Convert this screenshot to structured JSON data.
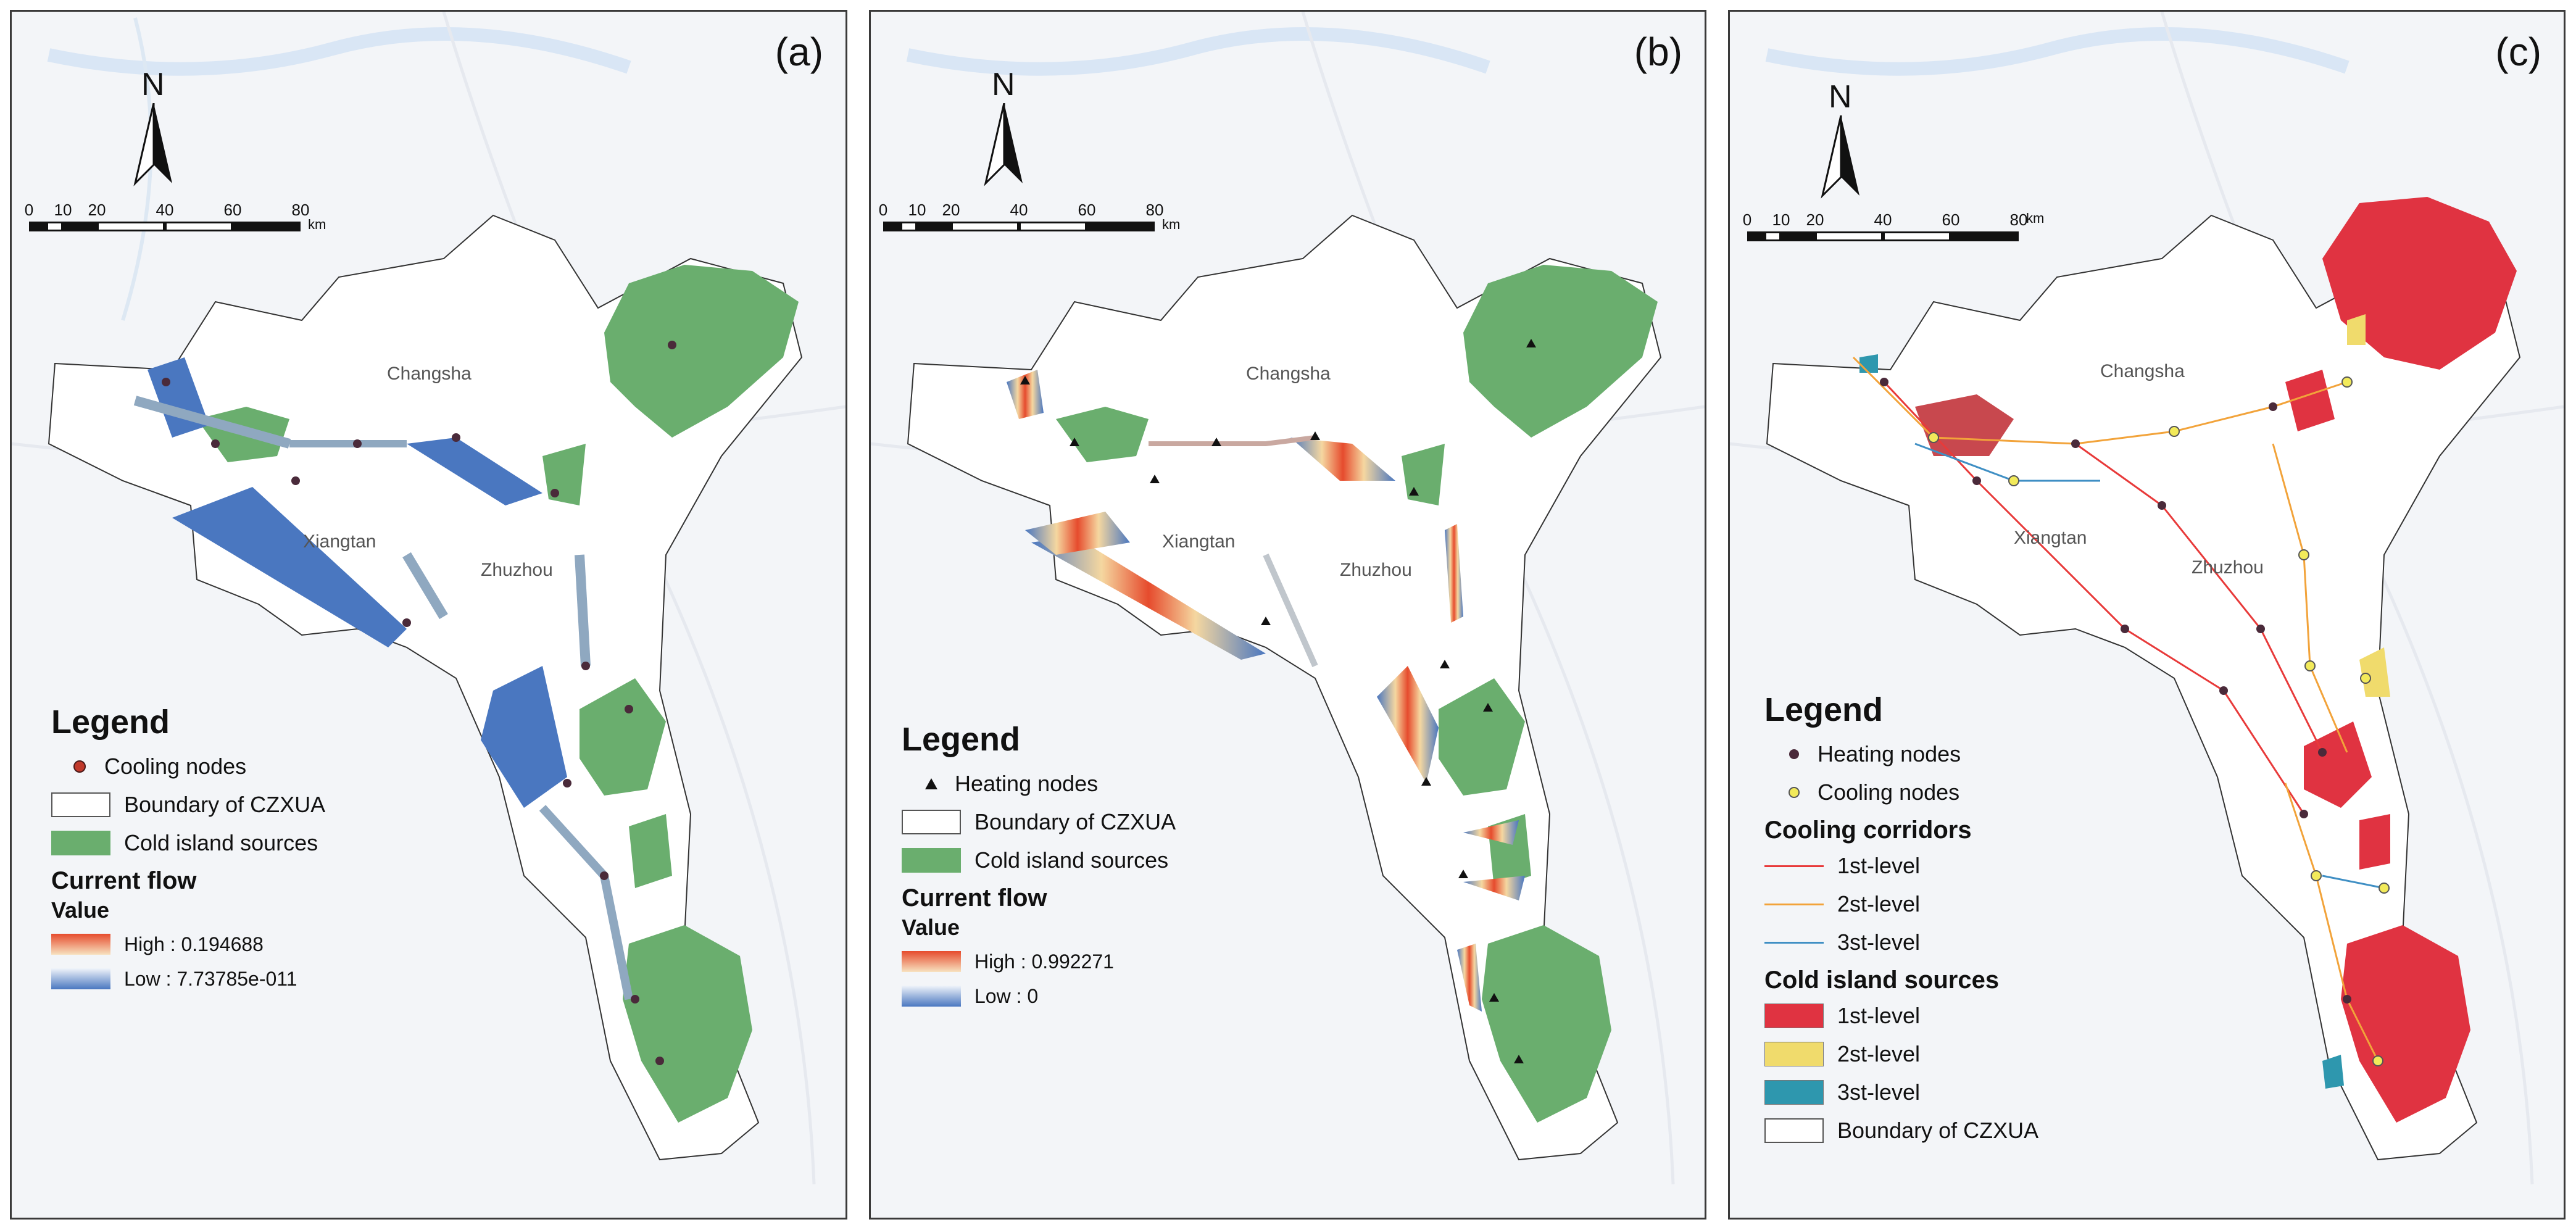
{
  "panels": {
    "a": {
      "label": "(a)",
      "legend": {
        "title": "Legend",
        "items": [
          "Cooling nodes",
          "Boundary of CZXUA",
          "Cold island sources"
        ],
        "ramp_title": "Current flow",
        "ramp_subtitle": "Value",
        "high": "High : 0.194688",
        "low": "Low : 7.73785e-011"
      }
    },
    "b": {
      "label": "(b)",
      "legend": {
        "title": "Legend",
        "items": [
          "Heating nodes",
          "Boundary of CZXUA",
          "Cold island sources"
        ],
        "ramp_title": "Current flow",
        "ramp_subtitle": "Value",
        "high": "High : 0.992271",
        "low": "Low : 0"
      }
    },
    "c": {
      "label": "(c)",
      "legend": {
        "title": "Legend",
        "node_items": [
          "Heating nodes",
          "Cooling nodes"
        ],
        "corridors_title": "Cooling corridors",
        "corridor_items": [
          "1st-level",
          "2st-level",
          "3st-level"
        ],
        "sources_title": "Cold island sources",
        "source_items": [
          "1st-level",
          "2st-level",
          "3st-level"
        ],
        "boundary": "Boundary of CZXUA"
      }
    }
  },
  "map": {
    "north": "N",
    "scale_ticks": [
      "0",
      "10",
      "20",
      "40",
      "60",
      "80"
    ],
    "scale_unit": "km",
    "cities": [
      "Changsha",
      "Xiangtan",
      "Zhuzhou"
    ]
  },
  "colors": {
    "cold_island_green": "#6aae6e",
    "flow_low_blue": "#4a77c0",
    "flow_high_red": "#e64b2d",
    "corridor_1st": "#e83a3a",
    "corridor_2nd": "#f2a33a",
    "corridor_3rd": "#3f8fc4",
    "source_1st": "#e03341",
    "source_2nd": "#f0db6c",
    "source_3rd": "#2e97ae",
    "heating_node": "#4a2a3a",
    "cooling_node": "#f2ea5a"
  },
  "icons": [
    "north-arrow-icon",
    "scale-bar-icon",
    "node-dot-icon",
    "node-triangle-icon"
  ]
}
